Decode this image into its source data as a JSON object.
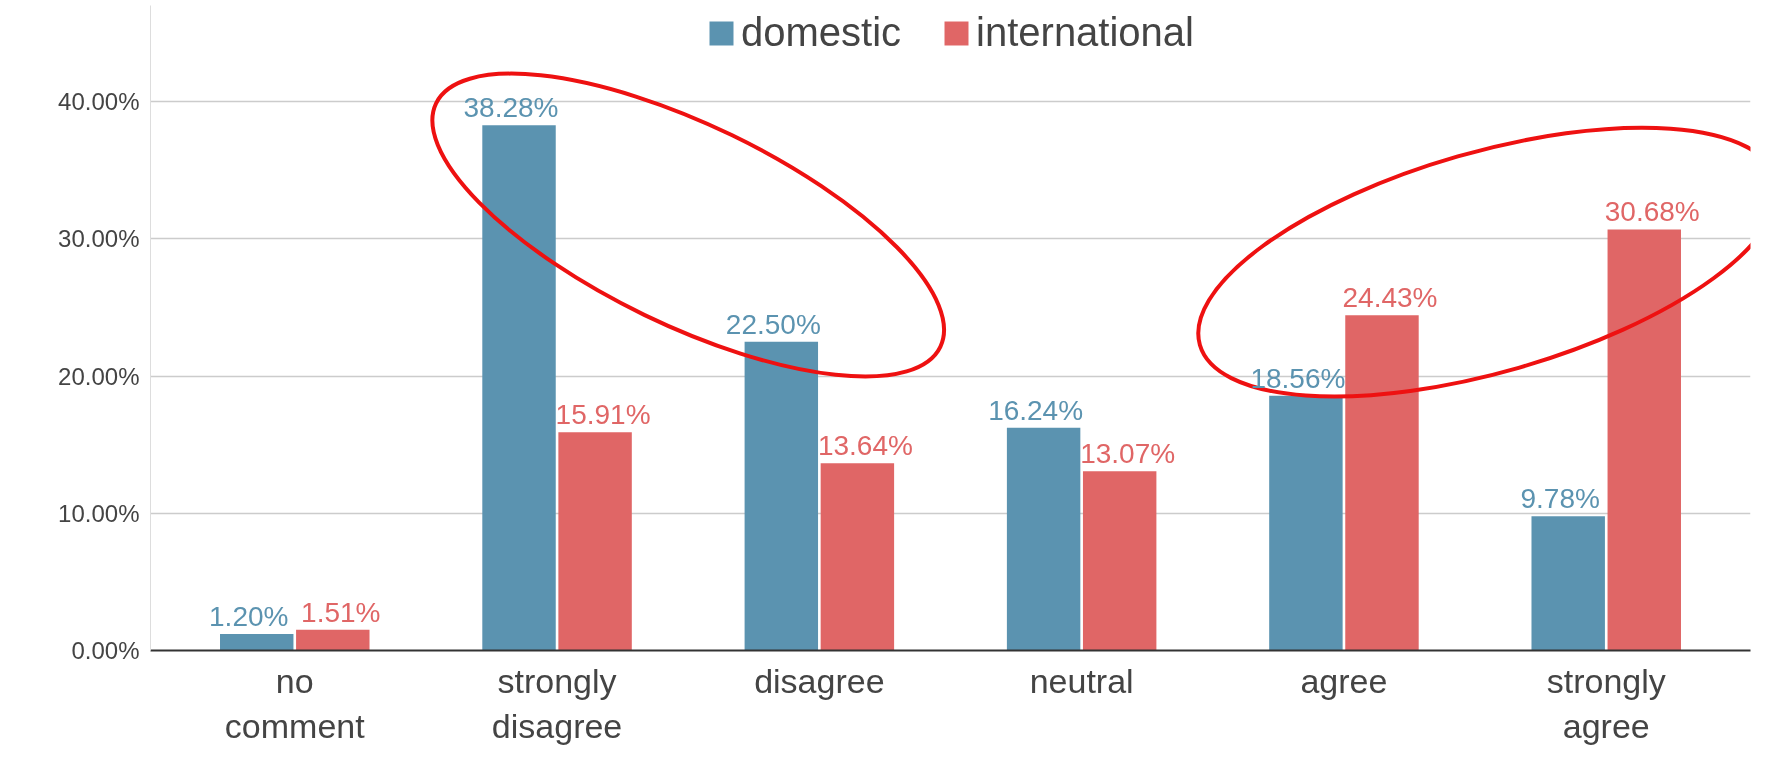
{
  "chart_data": {
    "type": "bar",
    "categories": [
      "no\ncomment",
      "strongly\ndisagree",
      "disagree",
      "neutral",
      "agree",
      "strongly\nagree"
    ],
    "series": [
      {
        "name": "domestic",
        "color": "#5b93b0",
        "values": [
          1.2,
          38.28,
          22.5,
          16.24,
          18.56,
          9.78
        ],
        "value_labels": [
          "1.20%",
          "38.28%",
          "22.50%",
          "16.24%",
          "18.56%",
          "9.78%"
        ]
      },
      {
        "name": "international",
        "color": "#e06666",
        "values": [
          1.51,
          15.91,
          13.64,
          13.07,
          24.43,
          30.68
        ],
        "value_labels": [
          "1.51%",
          "15.91%",
          "13.64%",
          "13.07%",
          "24.43%",
          "30.68%"
        ]
      }
    ],
    "ylim": [
      0,
      47
    ],
    "yticks": [
      {
        "value": 0,
        "label": "0.00%"
      },
      {
        "value": 10,
        "label": "10.00%"
      },
      {
        "value": 20,
        "label": "20.00%"
      },
      {
        "value": 30,
        "label": "30.00%"
      },
      {
        "value": 40,
        "label": "40.00%"
      }
    ],
    "grid": "y",
    "legend": "top"
  }
}
